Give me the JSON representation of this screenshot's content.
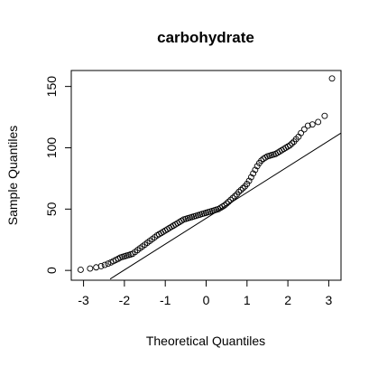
{
  "chart_data": {
    "type": "scatter",
    "title": "carbohydrate",
    "xlabel": "Theoretical Quantiles",
    "ylabel": "Sample Quantiles",
    "xlim": [
      -3.3,
      3.3
    ],
    "ylim": [
      -8,
      163
    ],
    "x_ticks": [
      -3,
      -2,
      -1,
      0,
      1,
      2,
      3
    ],
    "x_tick_labels": [
      "-3",
      "-2",
      "-1",
      "0",
      "1",
      "2",
      "3"
    ],
    "y_ticks": [
      0,
      50,
      100,
      150
    ],
    "y_tick_labels": [
      "0",
      "50",
      "100",
      "150"
    ],
    "grid": false,
    "reference_line": {
      "from": [
        -2.35,
        -7
      ],
      "to": [
        3.3,
        112
      ]
    },
    "series": [
      {
        "marker": "open-circle",
        "x": [
          -3.07,
          -2.84,
          -2.69,
          -2.57,
          -2.48,
          -2.4,
          -2.33,
          -2.27,
          -2.21,
          -2.15,
          -2.1,
          -2.05,
          -2.0,
          -1.95,
          -1.9,
          -1.85,
          -1.8,
          -1.74,
          -1.68,
          -1.62,
          -1.56,
          -1.5,
          -1.44,
          -1.38,
          -1.32,
          -1.26,
          -1.2,
          -1.15,
          -1.1,
          -1.05,
          -1.0,
          -0.95,
          -0.9,
          -0.85,
          -0.8,
          -0.75,
          -0.7,
          -0.65,
          -0.6,
          -0.55,
          -0.5,
          -0.45,
          -0.4,
          -0.35,
          -0.3,
          -0.25,
          -0.2,
          -0.15,
          -0.1,
          -0.05,
          0.0,
          0.05,
          0.1,
          0.15,
          0.2,
          0.25,
          0.3,
          0.35,
          0.4,
          0.45,
          0.5,
          0.55,
          0.6,
          0.65,
          0.7,
          0.75,
          0.8,
          0.85,
          0.9,
          0.95,
          1.0,
          1.05,
          1.1,
          1.15,
          1.2,
          1.25,
          1.3,
          1.35,
          1.4,
          1.45,
          1.5,
          1.55,
          1.6,
          1.65,
          1.7,
          1.75,
          1.8,
          1.85,
          1.9,
          1.95,
          2.0,
          2.05,
          2.1,
          2.15,
          2.2,
          2.26,
          2.32,
          2.4,
          2.49,
          2.6,
          2.74,
          2.9,
          3.08
        ],
        "y": [
          0.5,
          1.5,
          2.5,
          3.5,
          4.5,
          5.5,
          6.5,
          7.5,
          8.5,
          9.5,
          10.5,
          11,
          11.5,
          12,
          12.5,
          13,
          13.5,
          15,
          16.5,
          18,
          19.5,
          21,
          22.5,
          24,
          25.5,
          27,
          28.5,
          29.5,
          30.5,
          31.5,
          32.5,
          33.5,
          34.5,
          35.5,
          36.5,
          37.5,
          38.5,
          39.5,
          40.5,
          41.5,
          42,
          42.5,
          43,
          43.5,
          44,
          44.5,
          45,
          45.5,
          46,
          46.5,
          47,
          47.5,
          48,
          48.5,
          49,
          49.5,
          50,
          51,
          52,
          53,
          54.5,
          56,
          57.5,
          59,
          60.5,
          62,
          64,
          65.5,
          67,
          68.5,
          70.5,
          73,
          76,
          79,
          82,
          85,
          87.5,
          89.5,
          91,
          92,
          93,
          93.5,
          94,
          94.5,
          95,
          96,
          97,
          98,
          99,
          100,
          101,
          102,
          103.5,
          105,
          107,
          109,
          112,
          115,
          118,
          119,
          121,
          126,
          156.5
        ]
      }
    ]
  }
}
